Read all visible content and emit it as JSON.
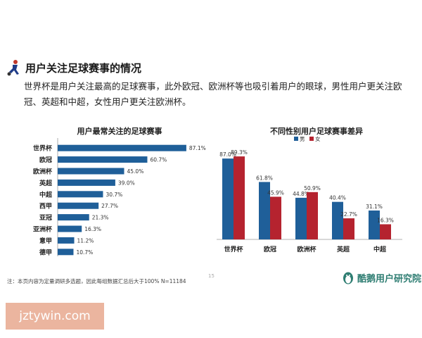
{
  "header": {
    "title": "用户关注足球赛事的情况",
    "description": "世界杯是用户关注最高的足球赛事，此外欧冠、欧洲杯等也吸引着用户的眼球，男性用户更关注欧冠、英超和中超，女性用户更关注欧洲杯。",
    "icon": "soccer-player-icon"
  },
  "chart_data": [
    {
      "type": "bar",
      "orientation": "horizontal",
      "title": "用户最常关注的足球赛事",
      "categories": [
        "世界杯",
        "欧冠",
        "欧洲杯",
        "英超",
        "中超",
        "西甲",
        "亚冠",
        "亚洲杯",
        "意甲",
        "德甲"
      ],
      "values": [
        87.1,
        60.7,
        45.0,
        39.0,
        30.7,
        27.7,
        21.3,
        16.3,
        11.2,
        10.7
      ],
      "labels": [
        "87.1%",
        "60.7%",
        "45.0%",
        "39.0%",
        "30.7%",
        "27.7%",
        "21.3%",
        "16.3%",
        "11.2%",
        "10.7%"
      ],
      "xlim": [
        0,
        100
      ],
      "color": "#1f5f99",
      "grid": false
    },
    {
      "type": "bar",
      "title": "不同性别用户足球赛事差异",
      "categories": [
        "世界杯",
        "欧冠",
        "欧洲杯",
        "英超",
        "中超"
      ],
      "series": [
        {
          "name": "男",
          "values": [
            87.0,
            61.8,
            44.8,
            40.4,
            31.1
          ],
          "labels": [
            "87.0%",
            "61.8%",
            "44.8%",
            "40.4%",
            "31.1%"
          ],
          "color": "#1f5f99"
        },
        {
          "name": "女",
          "values": [
            89.3,
            45.9,
            50.9,
            22.7,
            16.3
          ],
          "labels": [
            "89.3%",
            "45.9%",
            "50.9%",
            "22.7%",
            "16.3%"
          ],
          "color": "#b5232f"
        }
      ],
      "ylim": [
        0,
        100
      ],
      "legend": "top",
      "grid": false
    }
  ],
  "footer": {
    "note": "注：本页内容为定量调研多选题，因此每组数据汇总后大于100%  N=11184",
    "page_number": "15",
    "brand": "酷鹅用户研究院",
    "brand_icon": "penguin-logo-icon"
  },
  "watermark": "jztywin.com"
}
